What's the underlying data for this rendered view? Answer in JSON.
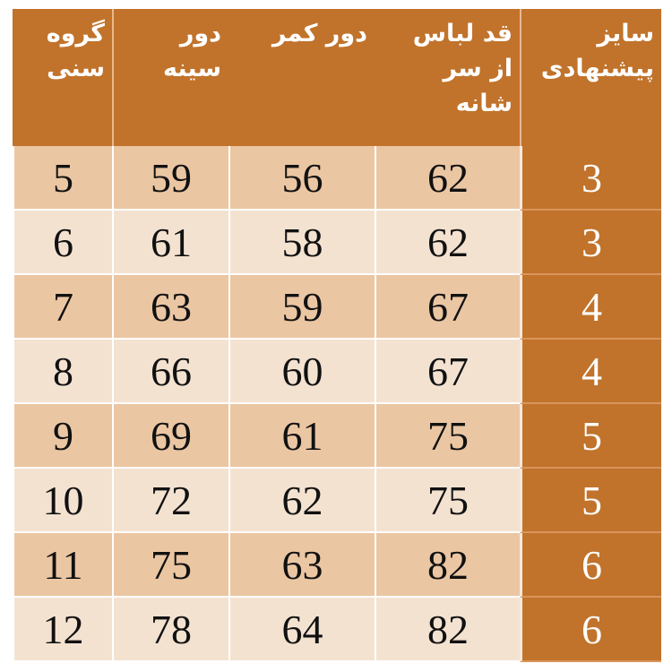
{
  "headers": [
    {
      "lines": [
        "سایز",
        "پیشنهادی"
      ]
    },
    {
      "lines": [
        "قد لباس",
        "از سر",
        "شانه"
      ]
    },
    {
      "lines": [
        "دور کمر"
      ]
    },
    {
      "lines": [
        "دور",
        "سینه"
      ]
    },
    {
      "lines": [
        "گروه",
        "سنی"
      ]
    }
  ],
  "rows": [
    [
      "3",
      "62",
      "56",
      "59",
      "5"
    ],
    [
      "3",
      "62",
      "58",
      "61",
      "6"
    ],
    [
      "4",
      "67",
      "59",
      "63",
      "7"
    ],
    [
      "4",
      "67",
      "60",
      "66",
      "8"
    ],
    [
      "5",
      "75",
      "61",
      "69",
      "9"
    ],
    [
      "5",
      "75",
      "62",
      "72",
      "10"
    ],
    [
      "6",
      "82",
      "63",
      "75",
      "11"
    ],
    [
      "6",
      "82",
      "64",
      "78",
      "12"
    ]
  ],
  "colors": {
    "header": "#c1732b",
    "row_odd": "#ebc6a3",
    "row_even": "#f4e2d1",
    "text": "#111111",
    "header_text": "#ffffff"
  }
}
